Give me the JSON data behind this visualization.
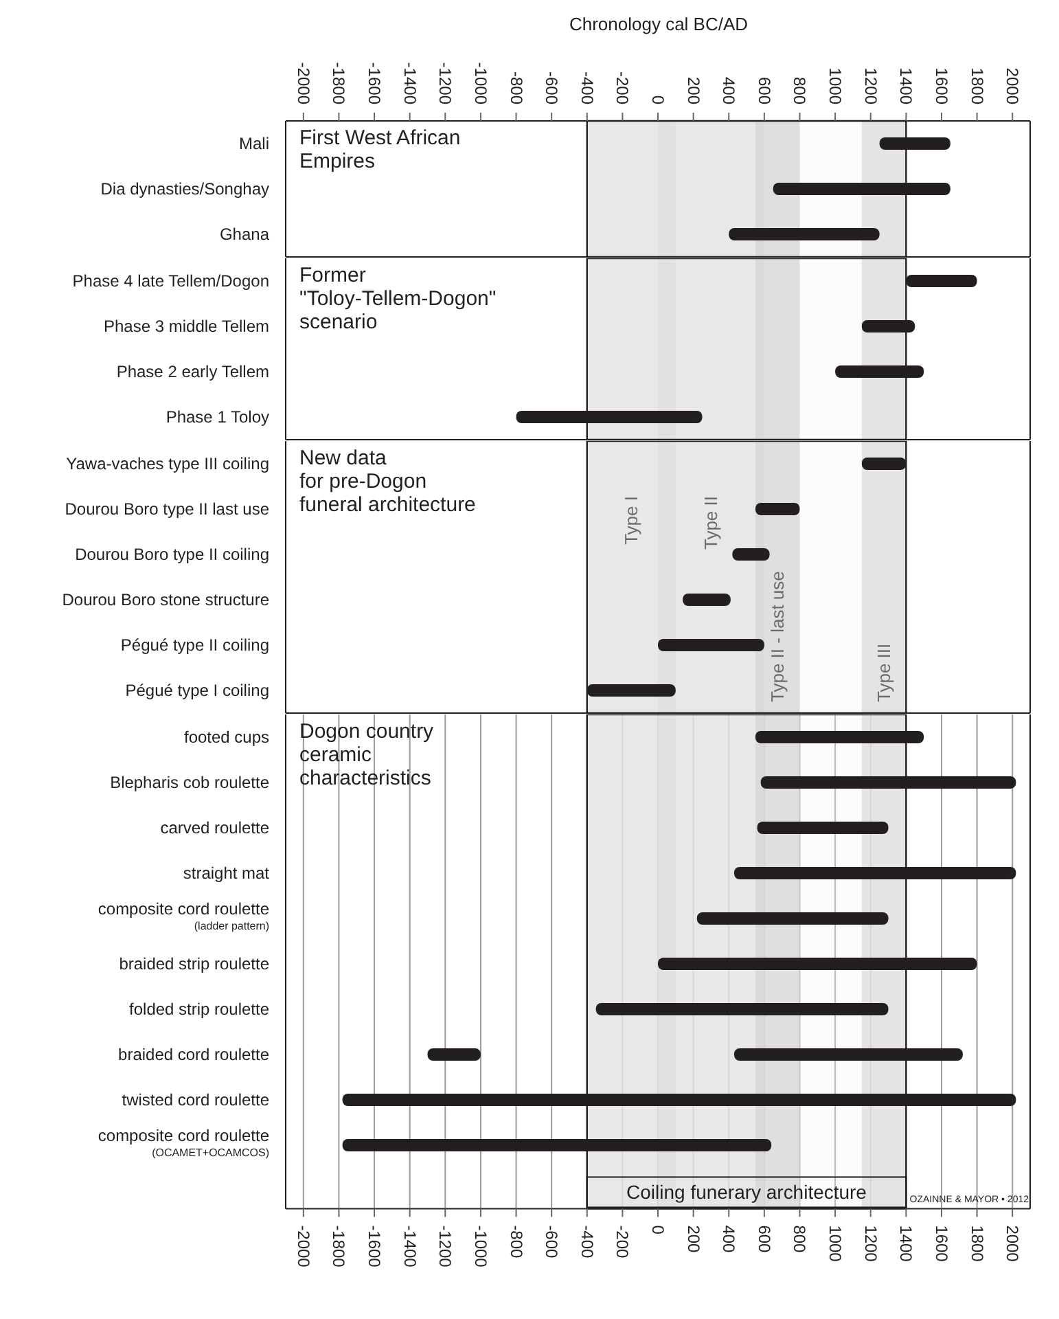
{
  "chart_data": [
    {
      "type": "bar",
      "orientation": "horizontal",
      "x2label": "Chronology cal BC/AD",
      "x2lim": [
        -2100,
        2100
      ],
      "x2ticks": [
        -2000,
        -1800,
        -1600,
        -1400,
        -1200,
        -1000,
        -800,
        -600,
        -400,
        -200,
        0,
        200,
        400,
        600,
        800,
        1000,
        1200,
        1400,
        1600,
        1800,
        2000
      ],
      "xlim": [
        -2100,
        2100
      ],
      "xticks": [
        -2000,
        -1800,
        -1600,
        -1400,
        -1200,
        -1000,
        -800,
        -600,
        -400,
        -200,
        0,
        200,
        400,
        600,
        800,
        1000,
        1200,
        1400,
        1600,
        1800,
        2000
      ],
      "tick_labels": "y",
      "grid": "x",
      "categories": [
        "Mali",
        "Dia dynasties/Songhay",
        "Ghana"
      ],
      "series": [
        {
          "color": "#231f20",
          "base": [
            1250,
            650,
            400
          ],
          "values": [
            400,
            1000,
            850
          ]
        }
      ],
      "bands": [
        {
          "axis": "x",
          "from": -400,
          "to": 100,
          "color": "#d6d6d6"
        },
        {
          "axis": "x",
          "from": 0,
          "to": 600,
          "color": "#d6d6d6"
        },
        {
          "axis": "x",
          "from": 550,
          "to": 800,
          "color": "#c4c4c4"
        },
        {
          "axis": "x",
          "from": 1150,
          "to": 1400,
          "color": "#cfcfcf"
        },
        {
          "axis": "x",
          "from": -400,
          "to": 1400,
          "color": "#f6f6f6"
        }
      ],
      "annotations": [
        "First West African\nEmpires"
      ]
    },
    {
      "type": "bar",
      "orientation": "horizontal",
      "xlim": [
        -2100,
        2100
      ],
      "xticks": [
        -2000,
        -1800,
        -1600,
        -1400,
        -1200,
        -1000,
        -800,
        -600,
        -400,
        -200,
        0,
        200,
        400,
        600,
        800,
        1000,
        1200,
        1400,
        1600,
        1800,
        2000
      ],
      "tick_labels": "y",
      "grid": "x",
      "categories": [
        "Phase 4 late Tellem/Dogon",
        "Phase 3 middle Tellem",
        "Phase 2 early Tellem",
        "Phase 1 Toloy"
      ],
      "series": [
        {
          "color": "#231f20",
          "base": [
            1400,
            1150,
            1000,
            -800
          ],
          "values": [
            400,
            300,
            500,
            1050
          ]
        }
      ],
      "bands": [
        {
          "axis": "x",
          "from": -400,
          "to": 100,
          "color": "#d6d6d6"
        },
        {
          "axis": "x",
          "from": 0,
          "to": 600,
          "color": "#d6d6d6"
        },
        {
          "axis": "x",
          "from": 550,
          "to": 800,
          "color": "#c4c4c4"
        },
        {
          "axis": "x",
          "from": 1150,
          "to": 1400,
          "color": "#cfcfcf"
        },
        {
          "axis": "x",
          "from": -400,
          "to": 1400,
          "color": "#f6f6f6"
        }
      ],
      "annotations": [
        "Former\n\"Toloy-Tellem-Dogon\"\nscenario"
      ]
    },
    {
      "type": "bar",
      "orientation": "horizontal",
      "xlim": [
        -2100,
        2100
      ],
      "xticks": [
        -2000,
        -1800,
        -1600,
        -1400,
        -1200,
        -1000,
        -800,
        -600,
        -400,
        -200,
        0,
        200,
        400,
        600,
        800,
        1000,
        1200,
        1400,
        1600,
        1800,
        2000
      ],
      "tick_labels": "y",
      "grid": "x",
      "categories": [
        "Yawa-vaches type III coiling",
        "Dourou Boro type II last use",
        "Dourou Boro type II coiling",
        "Dourou Boro stone structure",
        "Pégué type II coiling",
        "Pégué type I coiling"
      ],
      "series": [
        {
          "color": "#231f20",
          "base": [
            1150,
            550,
            420,
            140,
            0,
            -400
          ],
          "values": [
            250,
            250,
            210,
            270,
            600,
            500
          ]
        }
      ],
      "bands": [
        {
          "axis": "x",
          "from": -400,
          "to": 100,
          "color": "#d6d6d6",
          "label": "Type I"
        },
        {
          "axis": "x",
          "from": 0,
          "to": 600,
          "color": "#d6d6d6",
          "label": "Type II"
        },
        {
          "axis": "x",
          "from": 550,
          "to": 800,
          "color": "#c4c4c4",
          "label": "Type II - last use"
        },
        {
          "axis": "x",
          "from": 1150,
          "to": 1400,
          "color": "#cfcfcf",
          "label": "Type III"
        },
        {
          "axis": "x",
          "from": -400,
          "to": 1400,
          "color": "#f6f6f6"
        }
      ],
      "annotations": [
        "New data\nfor pre-Dogon\nfuneral architecture"
      ]
    },
    {
      "type": "bar",
      "orientation": "horizontal",
      "xlim": [
        -2100,
        2100
      ],
      "xticks": [
        -2000,
        -1800,
        -1600,
        -1400,
        -1200,
        -1000,
        -800,
        -600,
        -400,
        -200,
        0,
        200,
        400,
        600,
        800,
        1000,
        1200,
        1400,
        1600,
        1800,
        2000
      ],
      "grid": "x",
      "categories": [
        "footed cups",
        "Blepharis cob roulette",
        "carved roulette",
        "straight mat",
        "composite cord roulette (ladder pattern)",
        "braided strip roulette",
        "folded strip roulette",
        "braided cord roulette",
        "twisted cord roulette",
        "composite cord roulette (OCAMET+OCAMCOS)"
      ],
      "series": [
        {
          "color": "#231f20",
          "base": [
            550,
            580,
            560,
            430,
            220,
            0,
            -350,
            -1300,
            -1780,
            -1780
          ],
          "values": [
            950,
            1440,
            740,
            1590,
            1080,
            1800,
            1650,
            300,
            3800,
            2420
          ]
        },
        {
          "color": "#231f20",
          "base": [
            null,
            null,
            null,
            null,
            null,
            null,
            null,
            430,
            null,
            null
          ],
          "values": [
            null,
            null,
            null,
            null,
            null,
            null,
            null,
            1290,
            null,
            null
          ]
        }
      ],
      "bands": [
        {
          "axis": "x",
          "from": -400,
          "to": 100,
          "color": "#d6d6d6"
        },
        {
          "axis": "x",
          "from": 0,
          "to": 600,
          "color": "#d6d6d6"
        },
        {
          "axis": "x",
          "from": 550,
          "to": 800,
          "color": "#c4c4c4"
        },
        {
          "axis": "x",
          "from": 1150,
          "to": 1400,
          "color": "#cfcfcf"
        },
        {
          "axis": "x",
          "from": -400,
          "to": 1400,
          "color": "#f6f6f6",
          "label": "Coiling funerary architecture"
        }
      ],
      "annotations": [
        "Dogon country\nceramic\ncharacteristics",
        "OZAINNE & MAYOR • 2012"
      ]
    }
  ]
}
